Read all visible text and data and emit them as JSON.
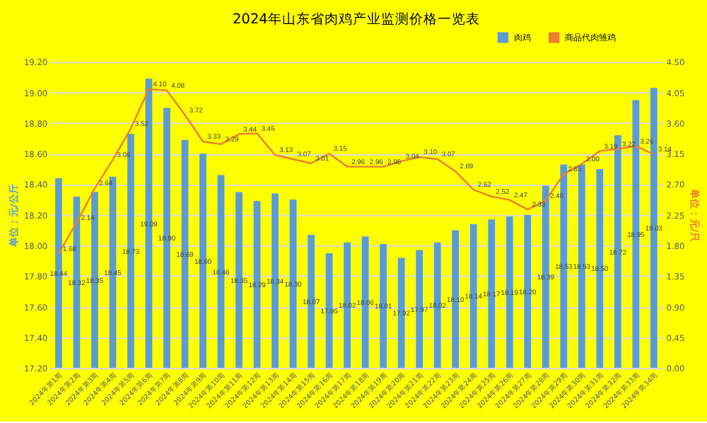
{
  "chart_data": {
    "type": "bar",
    "title": "2024年山东省肉鸡产业监测价格一览表",
    "ylabel": "单位：元/公斤",
    "y2label": "单位：元/只",
    "categories": [
      "2024年第1周",
      "2024年第2周",
      "2024年第3周",
      "2024年第4周",
      "2024年第5周",
      "2024年第6周",
      "2024年第7周",
      "2024年第8周",
      "2024年第9周",
      "2024年第10周",
      "2024年第11周",
      "2024年第12周",
      "2024年第13周",
      "2024年第14周",
      "2024年第15周",
      "2024年第16周",
      "2024年第17周",
      "2024年第18周",
      "2024年第19周",
      "2024年第20周",
      "2024年第21周",
      "2024年第22周",
      "2024年第23周",
      "2024年第24周",
      "2024年第25周",
      "2024年第26周",
      "2024年第27周",
      "2024年第28周",
      "2024年第29周",
      "2024年第30周",
      "2024年第31周",
      "2024年第32周",
      "2024年第33周",
      "2024年第34周"
    ],
    "series": [
      {
        "name": "肉鸡",
        "color": "#5b9bd5",
        "values": [
          18.44,
          18.32,
          18.35,
          18.45,
          18.73,
          19.09,
          18.9,
          18.69,
          18.6,
          18.46,
          18.35,
          18.29,
          18.34,
          18.3,
          18.07,
          17.95,
          18.02,
          18.06,
          18.01,
          17.92,
          17.97,
          18.02,
          18.1,
          18.14,
          18.17,
          18.19,
          18.2,
          18.39,
          18.53,
          18.53,
          18.5,
          18.72,
          18.95,
          19.03
        ],
        "value_labels": [
          "18.44",
          "18.32",
          "18.35",
          "18.45",
          "18.73",
          "19.09",
          "18.90",
          "18.69",
          "18.60",
          "18.46",
          "18.35",
          "18.29",
          "18.34",
          "18.30",
          "18.07",
          "17.95",
          "18.02",
          "18.06",
          "18.01",
          "17.92",
          "17.97",
          "18.02",
          "18.10",
          "18.14",
          "18.17",
          "18.19",
          "18.20",
          "18.39",
          "18.53",
          "18.53",
          "18.50",
          "18.72",
          "18.95",
          "19.03"
        ]
      },
      {
        "name": "商品代肉雏鸡",
        "type": "line",
        "axis": "y2",
        "color": "#ed7d31",
        "values": [
          1.68,
          2.14,
          2.64,
          3.06,
          3.52,
          4.1,
          4.08,
          3.72,
          3.33,
          3.29,
          3.44,
          3.45,
          3.13,
          3.07,
          3.01,
          3.15,
          2.96,
          2.96,
          2.96,
          3.04,
          3.1,
          3.07,
          2.89,
          2.62,
          2.52,
          2.47,
          2.33,
          2.46,
          2.85,
          3.0,
          3.19,
          3.22,
          3.26,
          3.14
        ],
        "value_labels": [
          "1.68",
          "2.14",
          "2.64",
          "3.06",
          "3.52",
          "4.10",
          "4.08",
          "3.72",
          "3.33",
          "3.29",
          "3.44",
          "3.45",
          "3.13",
          "3.07",
          "3.01",
          "3.15",
          "2.96",
          "2.96",
          "2.96",
          "3.04",
          "3.10",
          "3.07",
          "2.89",
          "2.62",
          "2.52",
          "2.47",
          "2.33",
          "2.46",
          "2.85",
          "3.00",
          "3.19",
          "3.22",
          "3.26",
          "3.14"
        ]
      }
    ],
    "ylim": [
      17.2,
      19.2
    ],
    "yticks": [
      {
        "value": 17.2,
        "label": "17.20"
      },
      {
        "value": 17.4,
        "label": "17.40"
      },
      {
        "value": 17.6,
        "label": "17.60"
      },
      {
        "value": 17.8,
        "label": "17.80"
      },
      {
        "value": 18.0,
        "label": "18.00"
      },
      {
        "value": 18.2,
        "label": "18.20"
      },
      {
        "value": 18.4,
        "label": "18.40"
      },
      {
        "value": 18.6,
        "label": "18.60"
      },
      {
        "value": 18.8,
        "label": "18.80"
      },
      {
        "value": 19.0,
        "label": "19.00"
      },
      {
        "value": 19.2,
        "label": "19.20"
      }
    ],
    "y2lim": [
      0,
      4.5
    ],
    "y2ticks": [
      {
        "value": 0,
        "label": "0.00"
      },
      {
        "value": 0.45,
        "label": "0.45"
      },
      {
        "value": 0.9,
        "label": "0.90"
      },
      {
        "value": 1.35,
        "label": "1.35"
      },
      {
        "value": 1.8,
        "label": "1.80"
      },
      {
        "value": 2.25,
        "label": "2.25"
      },
      {
        "value": 2.7,
        "label": "2.70"
      },
      {
        "value": 3.15,
        "label": "3.15"
      },
      {
        "value": 3.6,
        "label": "3.60"
      },
      {
        "value": 4.05,
        "label": "4.05"
      },
      {
        "value": 4.5,
        "label": "4.50"
      }
    ],
    "grid": "y",
    "legend": "top right",
    "marker": "none",
    "line_style": "solid"
  }
}
